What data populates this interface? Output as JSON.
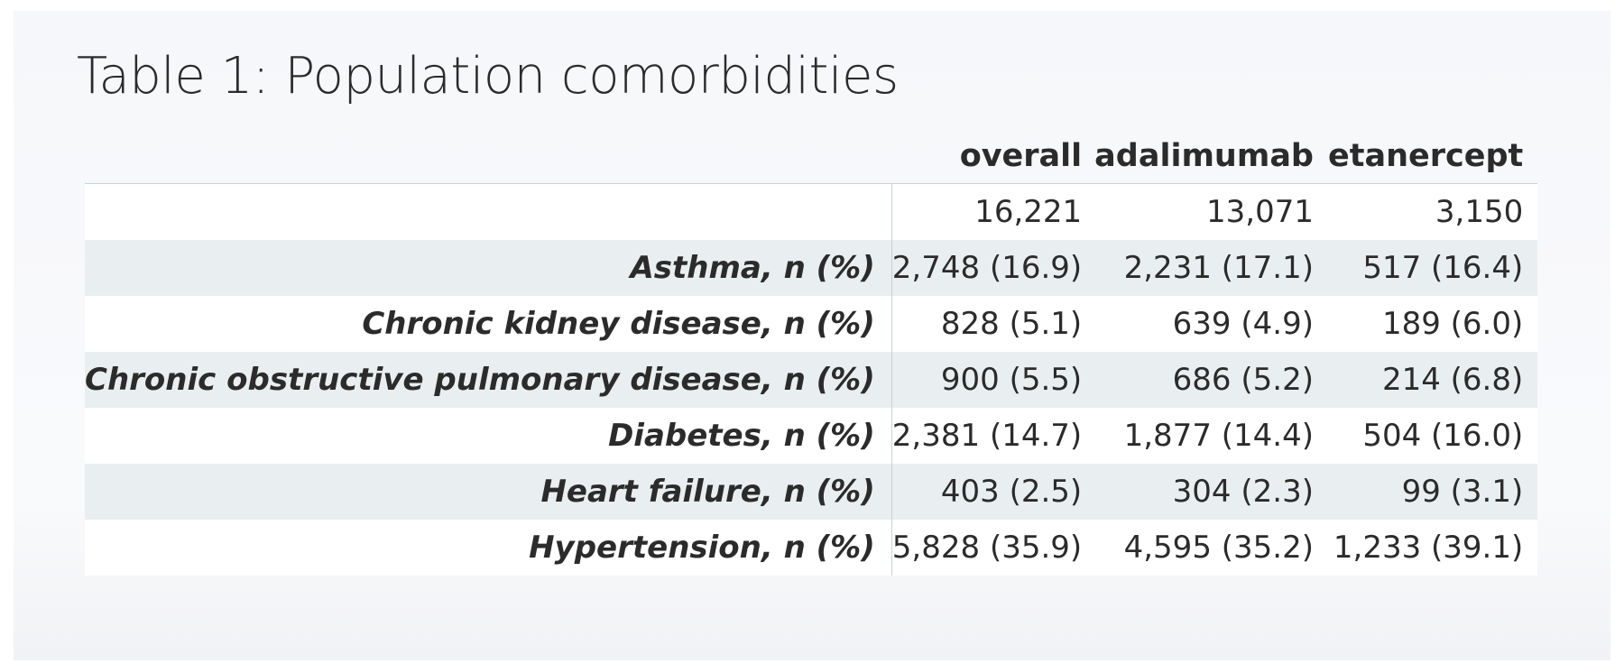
{
  "title": "Table 1: Population comorbidities",
  "table": {
    "columns": [
      "overall",
      "adalimumab",
      "etanercept"
    ],
    "n_row": {
      "label": "",
      "values": [
        "16,221",
        "13,071",
        "3,150"
      ]
    },
    "rows": [
      {
        "label": "Asthma, n (%)",
        "values": [
          "2,748 (16.9)",
          "2,231 (17.1)",
          "517 (16.4)"
        ]
      },
      {
        "label": "Chronic kidney disease, n (%)",
        "values": [
          "828 (5.1)",
          "639 (4.9)",
          "189 (6.0)"
        ]
      },
      {
        "label": "Chronic obstructive pulmonary disease, n (%)",
        "values": [
          "900 (5.5)",
          "686 (5.2)",
          "214 (6.8)"
        ]
      },
      {
        "label": "Diabetes, n (%)",
        "values": [
          "2,381 (14.7)",
          "1,877 (14.4)",
          "504 (16.0)"
        ]
      },
      {
        "label": "Heart failure, n (%)",
        "values": [
          "403 (2.5)",
          "304 (2.3)",
          "99 (3.1)"
        ]
      },
      {
        "label": "Hypertension, n (%)",
        "values": [
          "5,828 (35.9)",
          "4,595 (35.2)",
          "1,233 (39.1)"
        ]
      }
    ]
  },
  "colors": {
    "header_rule": "#c4d3d3",
    "stripe": "#e9eff0",
    "text": "#2b2b2b"
  }
}
